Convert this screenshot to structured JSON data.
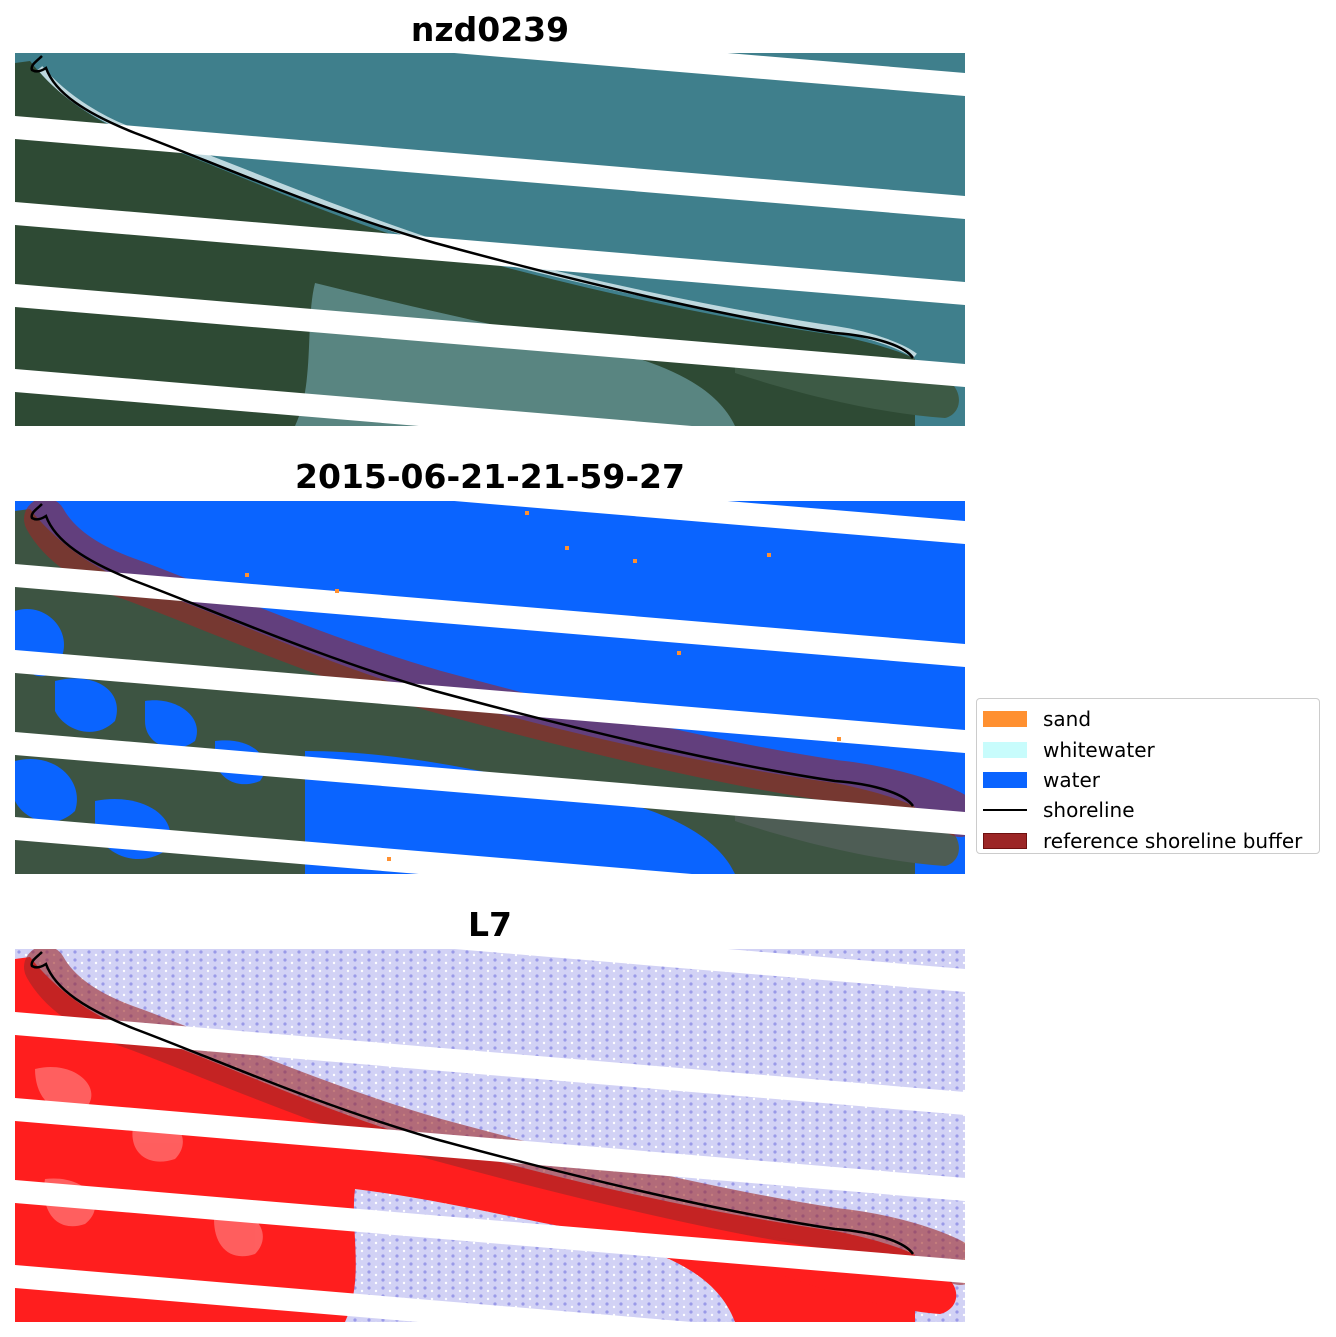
{
  "panels": [
    {
      "title": "nzd0239"
    },
    {
      "title": "2015-06-21-21-59-27"
    },
    {
      "title": "L7"
    }
  ],
  "legend": {
    "placement": "right-middle",
    "items": [
      {
        "label": "sand",
        "color": "#ff9030",
        "kind": "patch"
      },
      {
        "label": "whitewater",
        "color": "#c8fcfc",
        "kind": "patch"
      },
      {
        "label": "water",
        "color": "#0a64ff",
        "kind": "patch"
      },
      {
        "label": "shoreline",
        "color": "#000000",
        "kind": "line"
      },
      {
        "label": "reference shoreline buffer",
        "color": "#9c2626",
        "kind": "patch"
      }
    ]
  },
  "colors": {
    "sea_rgb": "#3f7f8c",
    "land_rgb": "#2e4a34",
    "lagoon_rgb": "#5e8c8a",
    "surf": "#dfeff2",
    "water_class": "#0a64ff",
    "land_index": "#ff1e1e",
    "water_index": "#d2d2f5",
    "buffer": "#9c2626",
    "shoreline": "#000000",
    "scan_gap": "#ffffff"
  }
}
